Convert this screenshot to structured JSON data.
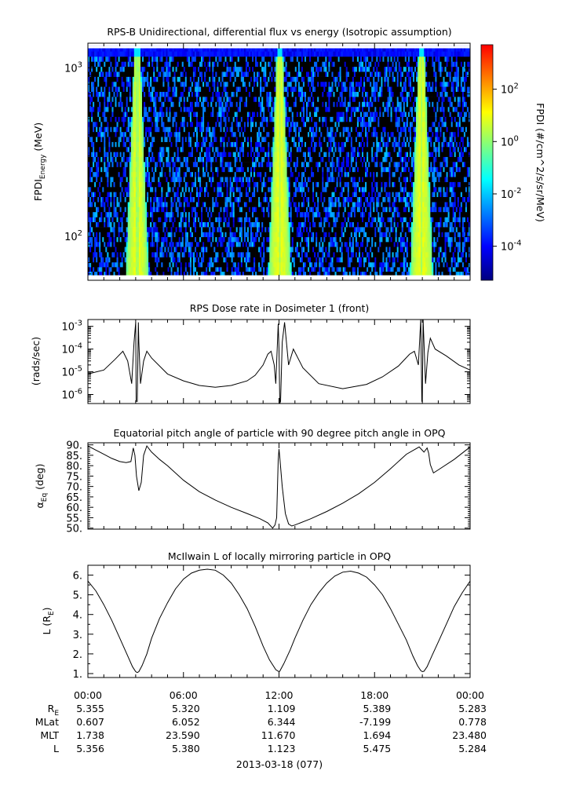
{
  "chart_data": [
    {
      "type": "heatmap",
      "title": "RPS-B  Unidirectional, differential flux vs energy (Isotropic assumption)",
      "ylabel": "FPDI",
      "ylabel_sub": "Energy",
      "ylabel_unit": " (MeV)",
      "yscale": "log",
      "ylim": [
        55,
        1400
      ],
      "y_ticks": [
        {
          "value": 100,
          "base": "10",
          "exp": "2"
        },
        {
          "value": 1000,
          "base": "10",
          "exp": "3"
        }
      ],
      "xlim_hours": [
        0,
        24
      ],
      "energy_channels_mev": [
        60,
        64,
        68,
        73,
        78,
        84,
        90,
        96,
        103,
        110,
        118,
        126,
        135,
        145,
        155,
        166,
        178,
        190,
        204,
        218,
        234,
        250,
        268,
        287,
        307,
        329,
        352,
        377,
        404,
        432,
        463,
        496,
        531,
        568,
        609,
        652,
        698,
        748,
        801,
        857,
        918,
        983,
        1053,
        1128,
        1210,
        1300
      ],
      "peak_times_hours": [
        3.1,
        12.05,
        20.95
      ],
      "peak_flux": 10,
      "background_flux": 0.0001,
      "colorbar": {
        "label": "FPDI (#/cm^2/s/sr/MeV)",
        "scale": "log",
        "range": [
          5e-06,
          5000
        ],
        "colors": [
          "#00007f",
          "#0000ff",
          "#007fff",
          "#00ffff",
          "#7fff7f",
          "#ffff00",
          "#ff7f00",
          "#ff0000"
        ],
        "ticks": [
          {
            "value": 0.0001,
            "base": "10",
            "exp": "-4"
          },
          {
            "value": 0.01,
            "base": "10",
            "exp": "-2"
          },
          {
            "value": 1,
            "base": "10",
            "exp": "0"
          },
          {
            "value": 100,
            "base": "10",
            "exp": "2"
          }
        ]
      }
    },
    {
      "type": "line",
      "title": "RPS  Dose rate in Dosimeter 1 (front)",
      "ylabel": "(rads/sec)",
      "yscale": "log",
      "ylim": [
        4e-07,
        0.002
      ],
      "y_ticks": [
        {
          "value": 1e-06,
          "base": "10",
          "exp": "-6"
        },
        {
          "value": 1e-05,
          "base": "10",
          "exp": "-5"
        },
        {
          "value": 0.0001,
          "base": "10",
          "exp": "-4"
        },
        {
          "value": 0.001,
          "base": "10",
          "exp": "-3"
        }
      ],
      "series": [
        {
          "x_hours": [
            0,
            1,
            1.7,
            2.2,
            2.5,
            2.75,
            2.9,
            3.0,
            3.03,
            3.1,
            3.17,
            3.2,
            3.3,
            3.5,
            3.7,
            4.0,
            5.0,
            6.0,
            7.0,
            8.0,
            9.0,
            10.0,
            10.5,
            11.0,
            11.3,
            11.5,
            11.7,
            11.8,
            11.95,
            12.0,
            12.05,
            12.1,
            12.2,
            12.35,
            12.6,
            12.9,
            13.5,
            14.5,
            16.0,
            17.5,
            18.5,
            19.5,
            20.2,
            20.5,
            20.75,
            20.9,
            20.97,
            21.0,
            21.05,
            21.2,
            21.35,
            21.5,
            21.8,
            22.5,
            23.3,
            24.0
          ],
          "y": [
            8e-06,
            1.2e-05,
            3.5e-05,
            8e-05,
            3e-05,
            3e-06,
            0.0002,
            0.0015,
            5e-07,
            5e-07,
            0.0015,
            0.0002,
            3e-06,
            3e-05,
            8e-05,
            4e-05,
            8e-06,
            4e-06,
            2.5e-06,
            2.1e-06,
            2.5e-06,
            4e-06,
            7e-06,
            2e-05,
            6e-05,
            8e-05,
            2e-05,
            3e-06,
            0.0013,
            0.0001,
            4e-07,
            5e-07,
            0.0002,
            0.0015,
            2e-05,
            0.0001,
            1.5e-05,
            3e-06,
            1.8e-06,
            2.8e-06,
            6e-06,
            1.8e-05,
            6e-05,
            8e-05,
            2e-05,
            0.002,
            5e-07,
            5e-07,
            0.002,
            3e-06,
            7e-05,
            0.0003,
            0.0001,
            5e-05,
            2e-05,
            1.2e-05
          ]
        }
      ]
    },
    {
      "type": "line",
      "title": "Equatorial pitch angle of particle with 90 degree pitch angle in OPQ",
      "ylabel": "α",
      "ylabel_sub": "Eq",
      "ylabel_unit": " (deg)",
      "ylim": [
        49.5,
        91
      ],
      "y_ticks": [
        50,
        55,
        60,
        65,
        70,
        75,
        80,
        85,
        90
      ],
      "series": [
        {
          "x_hours": [
            0,
            0.5,
            1.0,
            1.5,
            2.0,
            2.4,
            2.7,
            2.85,
            2.95,
            3.05,
            3.2,
            3.35,
            3.5,
            3.7,
            3.9,
            4.0,
            4.5,
            5.0,
            6.0,
            7.0,
            8.0,
            9.0,
            10.0,
            10.8,
            11.3,
            11.6,
            11.75,
            11.85,
            11.95,
            12.0,
            12.05,
            12.2,
            12.4,
            12.6,
            12.8,
            13.0,
            14.0,
            15.0,
            16.0,
            17.0,
            18.0,
            19.0,
            20.0,
            20.8,
            21.1,
            21.3,
            21.4,
            21.5,
            21.7,
            22.0,
            23.0,
            24.0
          ],
          "y": [
            89.5,
            87.5,
            85.5,
            83.5,
            82.0,
            81.5,
            82.0,
            88.5,
            85.0,
            75.0,
            68.0,
            72.0,
            85.0,
            89.5,
            87.5,
            86.5,
            83.0,
            80.0,
            73.0,
            67.5,
            63.5,
            60.0,
            57.0,
            54.5,
            52.5,
            50.0,
            51.5,
            55.0,
            83.0,
            88.0,
            84.0,
            70.0,
            57.0,
            52.0,
            51.0,
            51.5,
            54.5,
            58.0,
            62.0,
            66.5,
            72.0,
            78.5,
            85.5,
            89.0,
            86.5,
            88.5,
            86.0,
            80.5,
            76.5,
            78.0,
            83.0,
            89.0
          ]
        }
      ]
    },
    {
      "type": "line",
      "title": "McIlwain L of locally mirroring particle in OPQ",
      "ylabel": "L (R",
      "ylabel_sub": "E",
      "ylabel_unit": ")",
      "ylim": [
        0.8,
        6.5
      ],
      "y_ticks": [
        1,
        2,
        3,
        4,
        5,
        6
      ],
      "series": [
        {
          "x_hours": [
            0,
            0.5,
            1.0,
            1.5,
            2.0,
            2.5,
            2.8,
            3.0,
            3.1,
            3.2,
            3.4,
            3.7,
            4.0,
            4.5,
            5.0,
            5.5,
            6.0,
            6.5,
            7.0,
            7.5,
            8.0,
            8.5,
            9.0,
            9.5,
            10.0,
            10.5,
            11.0,
            11.4,
            11.8,
            12.0,
            12.05,
            12.1,
            12.3,
            12.7,
            13.0,
            13.5,
            14.0,
            14.5,
            15.0,
            15.5,
            16.0,
            16.5,
            17.0,
            17.5,
            18.0,
            18.5,
            19.0,
            19.5,
            20.0,
            20.4,
            20.7,
            20.9,
            21.0,
            21.1,
            21.3,
            21.6,
            22.0,
            22.5,
            23.0,
            23.5,
            24.0
          ],
          "y": [
            5.7,
            5.2,
            4.5,
            3.7,
            2.8,
            1.9,
            1.35,
            1.1,
            1.05,
            1.1,
            1.4,
            2.0,
            2.8,
            3.8,
            4.6,
            5.3,
            5.8,
            6.1,
            6.25,
            6.3,
            6.25,
            6.0,
            5.6,
            5.0,
            4.3,
            3.4,
            2.4,
            1.7,
            1.2,
            1.1,
            1.12,
            1.2,
            1.5,
            2.2,
            2.8,
            3.7,
            4.5,
            5.1,
            5.6,
            5.95,
            6.15,
            6.2,
            6.1,
            5.9,
            5.5,
            5.0,
            4.3,
            3.5,
            2.7,
            1.9,
            1.4,
            1.15,
            1.1,
            1.12,
            1.35,
            1.9,
            2.6,
            3.5,
            4.4,
            5.1,
            5.7
          ]
        }
      ]
    }
  ],
  "x_axis": {
    "tick_labels": [
      "00:00",
      "06:00",
      "12:00",
      "18:00",
      "00:00"
    ],
    "date_label": "2013-03-18 (077)",
    "ephemeris": [
      {
        "name": "R",
        "sub": "E",
        "values": [
          "5.355",
          "5.320",
          "1.109",
          "5.389",
          "5.283"
        ]
      },
      {
        "name": "MLat",
        "sub": "",
        "values": [
          "0.607",
          "6.052",
          "6.344",
          "-7.199",
          "0.778"
        ]
      },
      {
        "name": "MLT",
        "sub": "",
        "values": [
          "1.738",
          "23.590",
          "11.670",
          "1.694",
          "23.480"
        ]
      },
      {
        "name": "L",
        "sub": "",
        "values": [
          "5.356",
          "5.380",
          "1.123",
          "5.475",
          "5.284"
        ]
      }
    ]
  }
}
